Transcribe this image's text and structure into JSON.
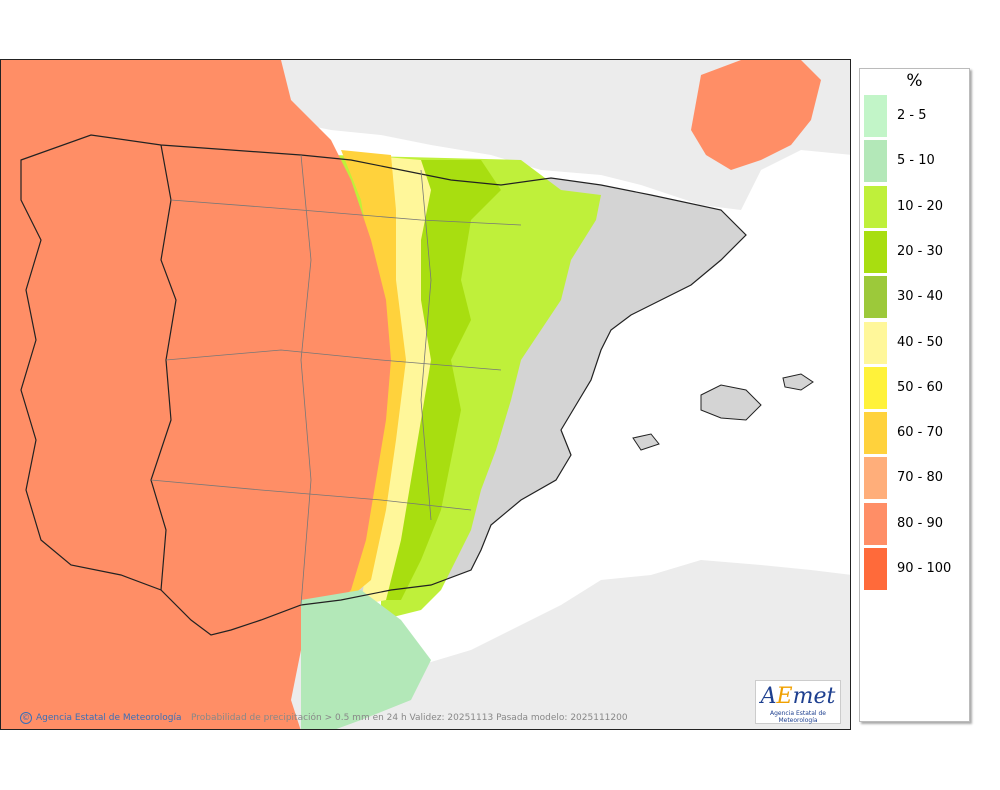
{
  "map": {
    "legend_title": "%",
    "legend": [
      {
        "label": "2 - 5",
        "color": "#c2f5c8"
      },
      {
        "label": "5 - 10",
        "color": "#b3e8b8"
      },
      {
        "label": "10 - 20",
        "color": "#bff03a"
      },
      {
        "label": "20 - 30",
        "color": "#a8de10"
      },
      {
        "label": "30 - 40",
        "color": "#9cc93a"
      },
      {
        "label": "40 - 50",
        "color": "#fff79a"
      },
      {
        "label": "50 - 60",
        "color": "#fff23a"
      },
      {
        "label": "60 - 70",
        "color": "#ffd23c"
      },
      {
        "label": "70 - 80",
        "color": "#ffae7a"
      },
      {
        "label": "80 - 90",
        "color": "#ff8e66"
      },
      {
        "label": "90 - 100",
        "color": "#ff6a3a"
      }
    ],
    "copyright": "Agencia Estatal de Meteorología",
    "caption": "Probabilidad de precipitación > 0.5 mm en 24 h Validez: 20251113 Pasada modelo: 2025111200",
    "logo": {
      "brand_prefix": "A",
      "brand_e": "E",
      "brand_suffix": "met",
      "subtitle": "Agencia Estatal de Meteorología"
    },
    "colors": {
      "sea": "#ffffff",
      "land_foreign": "#ececec",
      "land_dry": "#d4d4d4",
      "border": "#222222",
      "province_border": "#777777"
    }
  }
}
